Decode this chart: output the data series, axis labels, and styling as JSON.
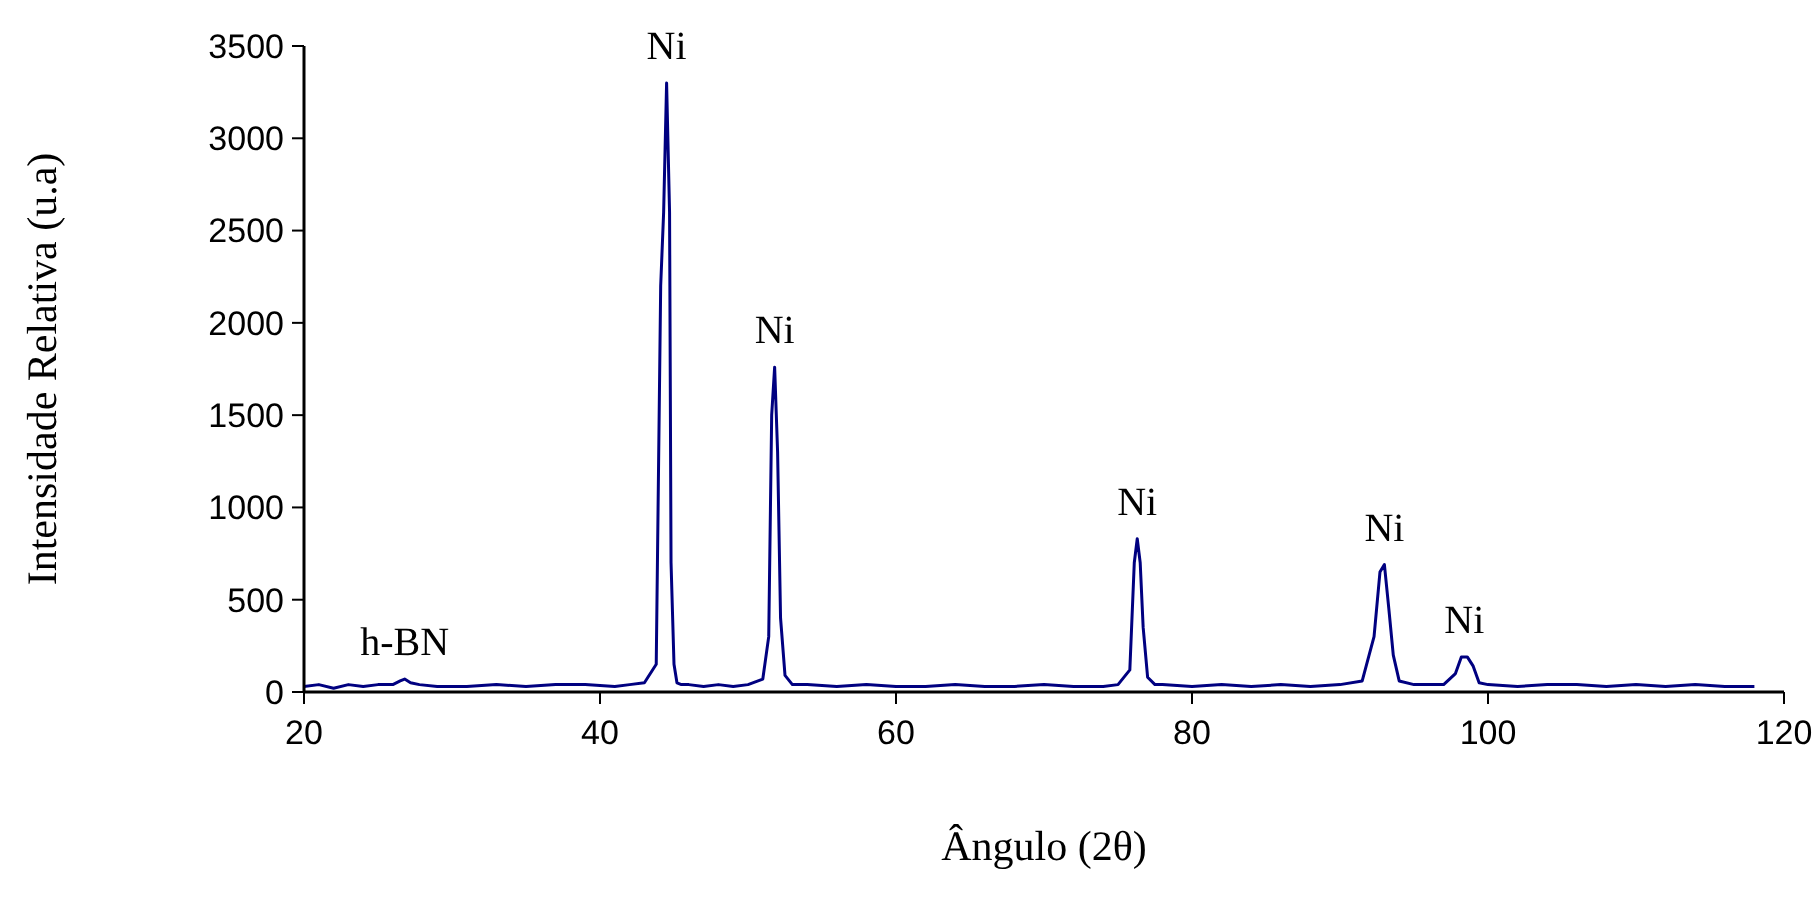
{
  "chart_data": {
    "type": "line",
    "xlabel": "Ângulo (2θ)",
    "ylabel": "Intensidade Relativa (u.a)",
    "xlim": [
      20,
      120
    ],
    "xticks": [
      20,
      40,
      60,
      80,
      100,
      120
    ],
    "ylim": [
      0,
      3500
    ],
    "yticks": [
      0,
      500,
      1000,
      1500,
      2000,
      2500,
      3000,
      3500
    ],
    "grid": false,
    "marker": "none",
    "line_style": "solid",
    "series": [
      {
        "color": "#000080",
        "x": [
          20,
          21,
          22,
          23,
          24,
          25,
          26,
          26.5,
          26.8,
          27.2,
          27.8,
          29,
          31,
          33,
          35,
          37,
          39,
          41,
          42,
          43,
          43.8,
          44.1,
          44.3,
          44.5,
          44.7,
          44.8,
          45,
          45.2,
          45.5,
          46,
          47,
          48,
          49,
          50,
          51,
          51.4,
          51.6,
          51.8,
          52,
          52.2,
          52.5,
          53,
          54,
          56,
          58,
          60,
          62,
          64,
          66,
          68,
          70,
          72,
          74,
          75,
          75.8,
          76.1,
          76.3,
          76.5,
          76.7,
          77,
          77.5,
          78,
          80,
          82,
          84,
          86,
          88,
          90,
          91.5,
          92.3,
          92.7,
          93,
          93.3,
          93.6,
          94,
          95,
          96,
          97,
          97.8,
          98.2,
          98.6,
          99,
          99.4,
          100,
          102,
          104,
          106,
          108,
          110,
          112,
          114,
          116,
          118
        ],
        "values": [
          30,
          40,
          20,
          40,
          30,
          40,
          40,
          60,
          70,
          50,
          40,
          30,
          30,
          40,
          30,
          40,
          40,
          30,
          40,
          50,
          150,
          2200,
          2600,
          3300,
          2600,
          700,
          150,
          50,
          40,
          40,
          30,
          40,
          30,
          40,
          70,
          300,
          1500,
          1760,
          1300,
          400,
          90,
          40,
          40,
          30,
          40,
          30,
          30,
          40,
          30,
          30,
          40,
          30,
          30,
          40,
          120,
          700,
          830,
          700,
          350,
          80,
          40,
          40,
          30,
          40,
          30,
          40,
          30,
          40,
          60,
          300,
          650,
          690,
          450,
          200,
          60,
          40,
          40,
          40,
          100,
          190,
          190,
          140,
          50,
          40,
          30,
          40,
          40,
          30,
          40,
          30,
          40,
          30,
          30
        ]
      }
    ],
    "annotations": [
      {
        "text": "Ni",
        "x": 44.5,
        "y": 3300
      },
      {
        "text": "Ni",
        "x": 51.8,
        "y": 1760
      },
      {
        "text": "h-BN",
        "x": 26.8,
        "y": 70
      },
      {
        "text": "Ni",
        "x": 76.3,
        "y": 830
      },
      {
        "text": "Ni",
        "x": 93,
        "y": 690
      },
      {
        "text": "Ni",
        "x": 98.4,
        "y": 190
      }
    ]
  }
}
